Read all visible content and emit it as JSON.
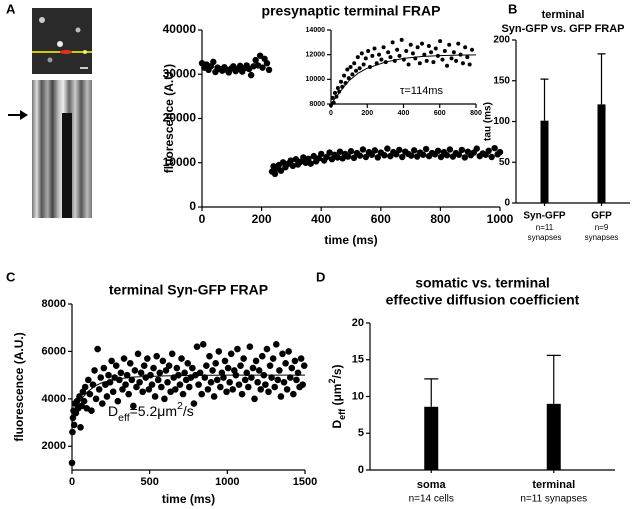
{
  "panels": [
    "A",
    "B",
    "C",
    "D"
  ],
  "chart_data": [
    {
      "type": "scatter",
      "title": "presynaptic terminal FRAP",
      "xlabel": "time (ms)",
      "ylabel": "fluorescence (A.U.)",
      "color": "#000000",
      "xlim": [
        0,
        1000
      ],
      "ylim": [
        0,
        40000
      ],
      "xticks": [
        0,
        200,
        400,
        600,
        800,
        1000
      ],
      "yticks": [
        0,
        10000,
        20000,
        30000,
        40000
      ],
      "x": [
        0,
        8,
        15,
        22,
        30,
        38,
        45,
        52,
        60,
        68,
        75,
        83,
        90,
        98,
        105,
        113,
        120,
        128,
        135,
        143,
        150,
        158,
        165,
        173,
        180,
        188,
        195,
        203,
        210,
        218,
        225,
        235,
        240,
        245,
        250,
        258,
        265,
        272,
        280,
        290,
        298,
        305,
        315,
        322,
        330,
        340,
        348,
        357,
        365,
        375,
        383,
        392,
        400,
        410,
        418,
        428,
        436,
        445,
        455,
        463,
        472,
        480,
        490,
        500,
        510,
        520,
        530,
        540,
        550,
        560,
        570,
        580,
        590,
        600,
        612,
        622,
        632,
        642,
        652,
        662,
        672,
        682,
        692,
        702,
        712,
        722,
        732,
        742,
        752,
        762,
        772,
        782,
        792,
        802,
        812,
        822,
        832,
        842,
        852,
        862,
        872,
        882,
        892,
        902,
        912,
        922,
        932,
        942,
        952,
        962,
        972,
        982,
        992,
        1000
      ],
      "values": [
        32500,
        31500,
        32200,
        31000,
        31800,
        32800,
        30500,
        31500,
        31200,
        30800,
        31600,
        31000,
        30400,
        31300,
        31800,
        30700,
        31200,
        31900,
        30600,
        31400,
        32000,
        31200,
        29800,
        31800,
        33200,
        32000,
        34200,
        31500,
        33500,
        32500,
        31000,
        8000,
        9200,
        7500,
        8700,
        9500,
        8200,
        10100,
        9000,
        9800,
        10500,
        9300,
        10800,
        9600,
        10200,
        11200,
        10000,
        10900,
        9800,
        11500,
        10300,
        11000,
        12000,
        10500,
        11300,
        12300,
        10800,
        11800,
        11200,
        12500,
        11000,
        12000,
        11400,
        12600,
        11100,
        12200,
        11600,
        13000,
        11300,
        12400,
        11800,
        12800,
        11200,
        12300,
        11700,
        13200,
        11500,
        12400,
        11900,
        12900,
        11300,
        12500,
        12000,
        11600,
        12800,
        11400,
        12300,
        11800,
        13100,
        11500,
        12200,
        11900,
        12700,
        11300,
        12400,
        11700,
        13000,
        11400,
        12200,
        11800,
        12900,
        11200,
        12500,
        11700,
        12300,
        13200,
        11500,
        12100,
        11800,
        12700,
        11300,
        13300,
        11900,
        12400
      ]
    },
    {
      "type": "scatter",
      "annotation": [
        {
          "text": "τ=114ms"
        }
      ],
      "color": "#000000",
      "xlim": [
        0,
        800
      ],
      "ylim": [
        8000,
        14000
      ],
      "xticks": [
        0,
        200,
        400,
        600,
        800
      ],
      "yticks": [
        8000,
        10000,
        12000,
        14000
      ],
      "x": [
        0,
        8,
        15,
        22,
        30,
        38,
        45,
        55,
        62,
        72,
        80,
        90,
        98,
        108,
        118,
        128,
        138,
        148,
        158,
        170,
        180,
        192,
        205,
        215,
        228,
        240,
        252,
        265,
        278,
        290,
        302,
        315,
        328,
        340,
        352,
        365,
        378,
        390,
        402,
        415,
        428,
        440,
        452,
        465,
        478,
        490,
        502,
        515,
        528,
        540,
        552,
        565,
        578,
        590,
        602,
        615,
        628,
        640,
        652,
        665,
        678,
        690,
        702,
        715,
        728,
        740,
        752,
        765,
        778
      ],
      "values": [
        7900,
        8500,
        8100,
        8900,
        8600,
        9300,
        9000,
        9800,
        9400,
        10300,
        9700,
        10800,
        10100,
        11000,
        10400,
        11300,
        10700,
        11800,
        10900,
        12100,
        11200,
        11700,
        12300,
        11000,
        11900,
        12500,
        11300,
        12000,
        11600,
        12600,
        11400,
        12200,
        11800,
        13000,
        11500,
        12400,
        11900,
        13200,
        11600,
        12300,
        11200,
        12800,
        12100,
        11700,
        12600,
        11300,
        12900,
        12000,
        11500,
        12700,
        12200,
        11400,
        12500,
        11900,
        13100,
        11600,
        12300,
        11100,
        12800,
        11700,
        12200,
        11500,
        12900,
        12000,
        11300,
        12600,
        11800,
        11200,
        12400
      ],
      "fit": {
        "x": [
          0,
          50,
          100,
          150,
          200,
          300,
          400,
          500,
          600,
          700,
          800
        ],
        "values": [
          8000,
          9000,
          9900,
          10500,
          10900,
          11400,
          11700,
          11850,
          11920,
          11960,
          11980
        ]
      }
    },
    {
      "type": "bar",
      "title": [
        "terminal",
        "Syn-GFP vs. GFP FRAP"
      ],
      "ylabel": "tau (ms)",
      "color": "#000000",
      "categories": [
        "Syn-GFP",
        "GFP"
      ],
      "sublabels": [
        [
          "n=11",
          "synapses"
        ],
        [
          "n=9",
          "synapses"
        ]
      ],
      "values": [
        101,
        121
      ],
      "errors": [
        51,
        62
      ],
      "ylim": [
        0,
        200
      ],
      "yticks": [
        0,
        50,
        100,
        150,
        200
      ]
    },
    {
      "type": "scatter",
      "title": "terminal Syn-GFP FRAP",
      "xlabel": "time (ms)",
      "ylabel": "fluorescence (A.U.)",
      "color": "#000000",
      "annotation": [
        {
          "text": "D"
        },
        {
          "text": "eff",
          "shift": "sub"
        },
        {
          "text": "=5.2μm"
        },
        {
          "text": "2",
          "shift": "super"
        },
        {
          "text": "/s"
        }
      ],
      "xlim": [
        0,
        1500
      ],
      "ylim": [
        1000,
        8000
      ],
      "xticks": [
        0,
        500,
        1000,
        1500
      ],
      "yticks": [
        2000,
        4000,
        6000,
        8000
      ],
      "x": [
        0,
        3,
        6,
        10,
        14,
        18,
        25,
        32,
        40,
        48,
        55,
        62,
        70,
        78,
        85,
        95,
        105,
        115,
        125,
        135,
        145,
        155,
        165,
        175,
        185,
        195,
        205,
        215,
        225,
        235,
        245,
        255,
        265,
        275,
        285,
        295,
        305,
        315,
        325,
        335,
        345,
        355,
        365,
        375,
        385,
        395,
        405,
        415,
        425,
        435,
        445,
        455,
        465,
        475,
        485,
        495,
        505,
        515,
        525,
        535,
        545,
        555,
        565,
        575,
        585,
        595,
        605,
        615,
        625,
        635,
        645,
        655,
        665,
        675,
        685,
        695,
        705,
        715,
        725,
        735,
        745,
        755,
        765,
        775,
        785,
        795,
        805,
        815,
        825,
        835,
        845,
        855,
        865,
        875,
        885,
        895,
        905,
        915,
        925,
        935,
        945,
        955,
        965,
        975,
        985,
        995,
        1005,
        1015,
        1025,
        1035,
        1045,
        1055,
        1065,
        1075,
        1085,
        1095,
        1105,
        1115,
        1125,
        1135,
        1145,
        1155,
        1165,
        1175,
        1185,
        1195,
        1205,
        1215,
        1225,
        1235,
        1245,
        1255,
        1265,
        1275,
        1285,
        1295,
        1305,
        1315,
        1325,
        1335,
        1345,
        1355,
        1365,
        1375,
        1385,
        1395,
        1405,
        1415,
        1425,
        1435,
        1445,
        1455,
        1465,
        1475,
        1485,
        1495
      ],
      "values": [
        1300,
        2600,
        3200,
        3500,
        2900,
        3800,
        3400,
        3900,
        3600,
        4100,
        2800,
        3700,
        4300,
        3900,
        4500,
        3600,
        4800,
        4200,
        3500,
        4600,
        5200,
        4000,
        6100,
        4400,
        4900,
        3800,
        5300,
        4600,
        4100,
        5000,
        4700,
        5600,
        4300,
        4900,
        5400,
        3900,
        4800,
        5100,
        4400,
        5700,
        4600,
        5000,
        4200,
        5500,
        4800,
        3700,
        5200,
        4500,
        5900,
        4700,
        5100,
        4300,
        5400,
        4900,
        5700,
        4400,
        5000,
        4600,
        5300,
        4100,
        5800,
        4800,
        5100,
        4500,
        5600,
        4000,
        5200,
        4700,
        5400,
        4300,
        5900,
        4900,
        4400,
        5300,
        5000,
        4600,
        5700,
        4200,
        5100,
        4800,
        5500,
        4500,
        4900,
        5300,
        3800,
        5000,
        6200,
        4600,
        5100,
        4200,
        6300,
        4900,
        5400,
        4400,
        5800,
        4700,
        5200,
        4100,
        5500,
        4800,
        6000,
        4500,
        5100,
        4900,
        5600,
        4300,
        5300,
        4700,
        5900,
        4400,
        5200,
        5000,
        6100,
        4600,
        5400,
        4200,
        5700,
        4800,
        5100,
        4500,
        6200,
        4900,
        5300,
        4000,
        5600,
        4700,
        5200,
        4400,
        5800,
        5000,
        4600,
        6100,
        4300,
        5400,
        4900,
        5700,
        4500,
        6300,
        4800,
        5200,
        4100,
        5900,
        4700,
        5500,
        4400,
        6000,
        4900,
        5300,
        4200,
        5600,
        4800,
        5100,
        4500,
        5700,
        4600,
        5400
      ],
      "fit": {
        "x": [
          0,
          20,
          50,
          100,
          150,
          200,
          300,
          400,
          600,
          800,
          1000,
          1200,
          1500
        ],
        "values": [
          3000,
          3500,
          3900,
          4300,
          4550,
          4700,
          4850,
          4920,
          4970,
          4990,
          5000,
          5000,
          5000
        ]
      }
    },
    {
      "type": "bar",
      "title": [
        "somatic vs. terminal",
        "effective diffusion coefficient"
      ],
      "ylabel": [
        {
          "text": "D"
        },
        {
          "text": "eff",
          "shift": "sub"
        },
        {
          "text": " (μm"
        },
        {
          "text": "2",
          "shift": "super"
        },
        {
          "text": "/s)"
        }
      ],
      "color": "#000000",
      "categories": [
        "soma",
        "terminal"
      ],
      "sublabels": [
        [
          "n=14 cells"
        ],
        [
          "n=11 synapses"
        ]
      ],
      "values": [
        8.6,
        9.0
      ],
      "errors": [
        3.8,
        6.6
      ],
      "ylim": [
        0,
        20
      ],
      "yticks": [
        0,
        5,
        10,
        15,
        20
      ]
    }
  ]
}
